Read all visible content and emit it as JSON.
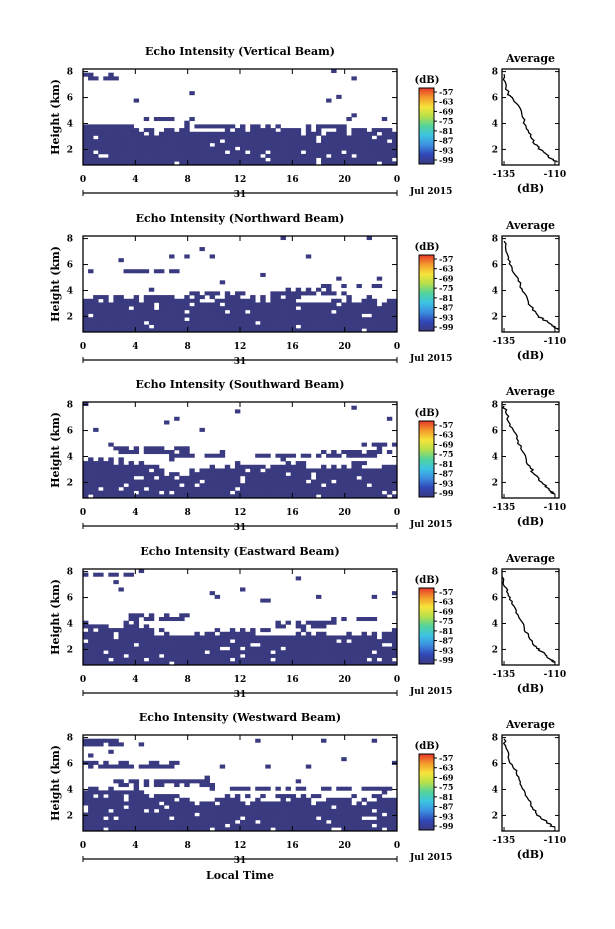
{
  "figure": {
    "xlabel": "Local Time",
    "date_label": "Jul 2015",
    "day_label": "31",
    "colorbar_unit": "(dB)",
    "colorbar_ticks": [
      "-57",
      "-63",
      "-69",
      "-75",
      "-81",
      "-87",
      "-93",
      "-99"
    ],
    "colorbar_colors": [
      "#e8372a",
      "#f39a2b",
      "#f6e43a",
      "#b6e04a",
      "#52d39b",
      "#3cc4e2",
      "#3c8fe0",
      "#3147b8",
      "#3a3a80"
    ],
    "dominant_color": "#3a3a80",
    "avg_title": "Average",
    "avg_xlabel": "(dB)"
  },
  "chart_data": [
    {
      "type": "heatmap",
      "title": "Echo Intensity (Vertical Beam)",
      "xlabel": "",
      "ylabel": "Height (km)",
      "x_ticks": [
        "0",
        "4",
        "8",
        "12",
        "16",
        "20",
        "0"
      ],
      "xlim": [
        0,
        24
      ],
      "y_ticks": [
        "2",
        "4",
        "6",
        "8"
      ],
      "ylim": [
        0.8,
        8.2
      ],
      "colorbar": {
        "label": "(dB)",
        "range": [
          -99,
          -57
        ]
      },
      "layer_top_km": [
        3.9,
        3.8,
        3.6,
        3.6,
        3.4,
        3.4,
        3.3,
        3.4,
        3.3,
        3.3,
        3.3,
        3.5,
        3.5,
        3.6,
        3.5,
        3.3,
        3.3,
        3.4,
        3.4,
        3.3,
        3.2,
        3.3,
        3.4,
        3.3
      ],
      "cloud_bands": [
        {
          "x": [
            4.5,
            8.5
          ],
          "y": [
            4.1,
            4.5
          ]
        },
        {
          "x": [
            7,
            12
          ],
          "y": [
            3.6,
            3.9
          ]
        },
        {
          "x": [
            17,
            20
          ],
          "y": [
            3.6,
            3.9
          ]
        },
        {
          "x": [
            20,
            23.5
          ],
          "y": [
            3.3,
            3.6
          ]
        },
        {
          "x": [
            0,
            2.5
          ],
          "y": [
            7.3,
            7.8
          ]
        }
      ]
    },
    {
      "type": "heatmap",
      "title": "Echo Intensity (Northward Beam)",
      "xlabel": "",
      "ylabel": "Height (km)",
      "x_ticks": [
        "0",
        "4",
        "8",
        "12",
        "16",
        "20",
        "0"
      ],
      "xlim": [
        0,
        24
      ],
      "y_ticks": [
        "2",
        "4",
        "6",
        "8"
      ],
      "ylim": [
        0.8,
        8.2
      ],
      "colorbar": {
        "label": "(dB)",
        "range": [
          -99,
          -57
        ]
      },
      "layer_top_km": [
        3.4,
        3.2,
        3.3,
        3.4,
        3.2,
        3.3,
        3.4,
        3.3,
        3.2,
        3.2,
        3.3,
        3.4,
        3.3,
        3.2,
        3.3,
        3.4,
        3.2,
        3.1,
        3.1,
        3.2,
        3.2,
        3.3,
        3.2,
        3.3
      ],
      "cloud_bands": [
        {
          "x": [
            8,
            13
          ],
          "y": [
            3.6,
            4.0
          ]
        },
        {
          "x": [
            14,
            20
          ],
          "y": [
            3.7,
            4.1
          ]
        },
        {
          "x": [
            18,
            23
          ],
          "y": [
            4.3,
            4.6
          ]
        },
        {
          "x": [
            3,
            7
          ],
          "y": [
            5.3,
            5.6
          ]
        }
      ]
    },
    {
      "type": "heatmap",
      "title": "Echo Intensity (Southward Beam)",
      "xlabel": "",
      "ylabel": "Height (km)",
      "x_ticks": [
        "0",
        "4",
        "8",
        "12",
        "16",
        "20",
        "0"
      ],
      "xlim": [
        0,
        24
      ],
      "y_ticks": [
        "2",
        "4",
        "6",
        "8"
      ],
      "ylim": [
        0.8,
        8.2
      ],
      "colorbar": {
        "label": "(dB)",
        "range": [
          -99,
          -57
        ]
      },
      "layer_top_km": [
        3.7,
        3.6,
        3.5,
        3.4,
        3.4,
        3.1,
        2.5,
        2.5,
        2.8,
        3.0,
        3.1,
        3.2,
        3.3,
        3.2,
        3.3,
        3.5,
        3.2,
        3.0,
        3.0,
        3.1,
        3.2,
        3.2,
        3.0,
        3.1
      ],
      "cloud_bands": [
        {
          "x": [
            2.5,
            8
          ],
          "y": [
            4.3,
            4.9
          ]
        },
        {
          "x": [
            6.5,
            12
          ],
          "y": [
            3.9,
            4.2
          ]
        },
        {
          "x": [
            13,
            18
          ],
          "y": [
            3.8,
            4.1
          ]
        },
        {
          "x": [
            18,
            23.5
          ],
          "y": [
            4.0,
            4.4
          ]
        },
        {
          "x": [
            21,
            24
          ],
          "y": [
            4.7,
            5.0
          ]
        }
      ]
    },
    {
      "type": "heatmap",
      "title": "Echo Intensity (Eastward Beam)",
      "xlabel": "",
      "ylabel": "Height (km)",
      "x_ticks": [
        "0",
        "4",
        "8",
        "12",
        "16",
        "20",
        "0"
      ],
      "xlim": [
        0,
        24
      ],
      "y_ticks": [
        "2",
        "4",
        "6",
        "8"
      ],
      "ylim": [
        0.8,
        8.2
      ],
      "colorbar": {
        "label": "(dB)",
        "range": [
          -99,
          -57
        ]
      },
      "layer_top_km": [
        3.8,
        3.7,
        3.7,
        3.8,
        3.7,
        3.2,
        3.1,
        3.0,
        3.0,
        3.1,
        3.2,
        3.3,
        3.3,
        3.2,
        3.1,
        3.1,
        3.2,
        3.1,
        3.2,
        3.2,
        3.1,
        3.2,
        3.2,
        3.3
      ],
      "cloud_bands": [
        {
          "x": [
            3,
            8
          ],
          "y": [
            4.3,
            4.7
          ]
        },
        {
          "x": [
            14,
            19
          ],
          "y": [
            3.7,
            4.1
          ]
        },
        {
          "x": [
            18,
            23
          ],
          "y": [
            4.1,
            4.4
          ]
        },
        {
          "x": [
            0,
            4
          ],
          "y": [
            7.5,
            7.9
          ]
        }
      ]
    },
    {
      "type": "heatmap",
      "title": "Echo Intensity (Westward Beam)",
      "xlabel": "Local Time",
      "ylabel": "Height (km)",
      "x_ticks": [
        "0",
        "4",
        "8",
        "12",
        "16",
        "20",
        "0"
      ],
      "xlim": [
        0,
        24
      ],
      "y_ticks": [
        "2",
        "4",
        "6",
        "8"
      ],
      "ylim": [
        0.8,
        8.2
      ],
      "colorbar": {
        "label": "(dB)",
        "range": [
          -99,
          -57
        ]
      },
      "layer_top_km": [
        4.0,
        3.9,
        3.9,
        3.8,
        3.6,
        3.4,
        3.3,
        3.0,
        2.9,
        3.1,
        3.2,
        3.3,
        3.2,
        3.2,
        3.2,
        3.2,
        3.3,
        3.2,
        3.2,
        3.3,
        3.2,
        3.2,
        3.3,
        3.3
      ],
      "cloud_bands": [
        {
          "x": [
            0,
            7
          ],
          "y": [
            5.6,
            6.2
          ]
        },
        {
          "x": [
            2,
            10
          ],
          "y": [
            4.3,
            4.7
          ]
        },
        {
          "x": [
            11,
            17
          ],
          "y": [
            3.8,
            4.1
          ]
        },
        {
          "x": [
            18,
            24
          ],
          "y": [
            4.0,
            4.3
          ]
        },
        {
          "x": [
            0,
            3
          ],
          "y": [
            7.4,
            7.9
          ]
        }
      ]
    },
    {
      "type": "line",
      "title": "Average",
      "xlabel": "(dB)",
      "x_ticks": [
        "-135",
        "-110"
      ],
      "xlim": [
        -136,
        -108
      ],
      "y_ticks": [
        "2",
        "4",
        "6",
        "8"
      ],
      "ylim": [
        0.8,
        8.2
      ],
      "series": [
        {
          "x": [
            -135,
            -134,
            -133,
            -131,
            -128,
            -126,
            -124,
            -122,
            -120,
            -118,
            -116,
            -114,
            -112,
            -109
          ],
          "y": [
            7.8,
            7.0,
            6.3,
            6.0,
            5.4,
            4.5,
            3.6,
            3.0,
            2.4,
            2.1,
            1.9,
            1.6,
            1.3,
            1.0
          ]
        }
      ]
    },
    {
      "type": "line",
      "title": "Average",
      "xlabel": "(dB)",
      "x_ticks": [
        "-135",
        "-110"
      ],
      "xlim": [
        -136,
        -108
      ],
      "y_ticks": [
        "2",
        "4",
        "6",
        "8"
      ],
      "ylim": [
        0.8,
        8.2
      ],
      "series": [
        {
          "x": [
            -135,
            -134,
            -133,
            -131,
            -129,
            -127,
            -125,
            -123,
            -121,
            -118,
            -116,
            -113,
            -110,
            -109
          ],
          "y": [
            7.8,
            7.0,
            6.4,
            5.7,
            5.1,
            4.4,
            3.8,
            3.1,
            2.5,
            2.0,
            1.8,
            1.5,
            1.2,
            1.0
          ]
        }
      ]
    },
    {
      "type": "line",
      "title": "Average",
      "xlabel": "(dB)",
      "x_ticks": [
        "-135",
        "-110"
      ],
      "xlim": [
        -136,
        -108
      ],
      "y_ticks": [
        "2",
        "4",
        "6",
        "8"
      ],
      "ylim": [
        0.8,
        8.2
      ],
      "series": [
        {
          "x": [
            -135,
            -134,
            -132,
            -130,
            -128,
            -126,
            -124,
            -122,
            -120,
            -118,
            -116,
            -114,
            -112,
            -110
          ],
          "y": [
            7.9,
            7.3,
            6.5,
            5.9,
            5.2,
            4.4,
            3.7,
            3.1,
            2.6,
            2.2,
            1.9,
            1.6,
            1.3,
            1.1
          ]
        }
      ]
    },
    {
      "type": "line",
      "title": "Average",
      "xlabel": "(dB)",
      "x_ticks": [
        "-135",
        "-110"
      ],
      "xlim": [
        -136,
        -108
      ],
      "y_ticks": [
        "2",
        "4",
        "6",
        "8"
      ],
      "ylim": [
        0.8,
        8.2
      ],
      "series": [
        {
          "x": [
            -136,
            -135,
            -133,
            -131,
            -129,
            -127,
            -125,
            -123,
            -121,
            -119,
            -116,
            -114,
            -112,
            -110
          ],
          "y": [
            7.6,
            6.9,
            6.3,
            5.7,
            5.0,
            4.3,
            3.6,
            3.1,
            2.5,
            2.1,
            1.8,
            1.5,
            1.2,
            1.0
          ]
        }
      ]
    },
    {
      "type": "line",
      "title": "Average",
      "xlabel": "(dB)",
      "x_ticks": [
        "-135",
        "-110"
      ],
      "xlim": [
        -136,
        -108
      ],
      "y_ticks": [
        "2",
        "4",
        "6",
        "8"
      ],
      "ylim": [
        0.8,
        8.2
      ],
      "series": [
        {
          "x": [
            -135,
            -134,
            -133,
            -131,
            -129,
            -127,
            -125,
            -123,
            -121,
            -119,
            -117,
            -114,
            -112,
            -110
          ],
          "y": [
            7.9,
            7.2,
            6.5,
            5.9,
            5.3,
            4.6,
            3.9,
            3.2,
            2.6,
            2.1,
            1.8,
            1.5,
            1.2,
            1.1
          ]
        }
      ]
    }
  ]
}
